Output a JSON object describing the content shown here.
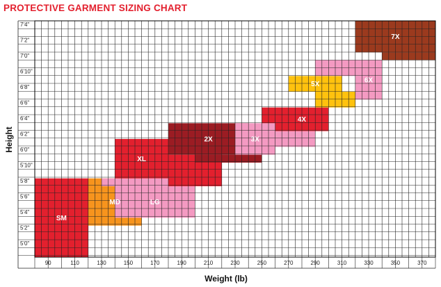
{
  "chart_data": {
    "type": "heatmap",
    "title": "PROTECTIVE GARMENT SIZING CHART",
    "xlabel": "Weight (lb)",
    "ylabel": "Height",
    "x_ticks": [
      "90",
      "110",
      "130",
      "150",
      "170",
      "190",
      "210",
      "230",
      "250",
      "270",
      "290",
      "310",
      "330",
      "350",
      "370"
    ],
    "y_ticks": [
      "7'4\"",
      "7'2\"",
      "7'0\"",
      "6'10\"",
      "6'8\"",
      "6'6\"",
      "6'4\"",
      "6'2\"",
      "6'0\"",
      "5'10\"",
      "5'8\"",
      "5'6\"",
      "5'4\"",
      "5'2\"",
      "5'0\""
    ],
    "x_range_lb": [
      80,
      380
    ],
    "y_range_in": [
      59,
      89
    ],
    "grid": true,
    "sizes": [
      {
        "label": "SM",
        "color": "#e3202e",
        "label_color": "#ffffff",
        "regions": [
          {
            "weight": [
              80,
              120
            ],
            "height": [
              59,
              69
            ]
          }
        ]
      },
      {
        "label": "MD",
        "color": "#f7941d",
        "label_color": "#ffffff",
        "regions": [
          {
            "weight": [
              120,
              160
            ],
            "height": [
              63,
              69
            ]
          }
        ]
      },
      {
        "label": "LG",
        "color": "#f49ac2",
        "label_color": "#ffffff",
        "regions": [
          {
            "weight": [
              130,
              180
            ],
            "height": [
              68,
              69
            ]
          },
          {
            "weight": [
              140,
              200
            ],
            "height": [
              64,
              68
            ]
          }
        ]
      },
      {
        "label": "XL",
        "color": "#e3202e",
        "label_color": "#ffffff",
        "regions": [
          {
            "weight": [
              140,
              180
            ],
            "height": [
              69,
              74
            ]
          },
          {
            "weight": [
              180,
              220
            ],
            "height": [
              68,
              72
            ]
          }
        ]
      },
      {
        "label": "2X",
        "color": "#9b1c23",
        "label_color": "#ffffff",
        "regions": [
          {
            "weight": [
              180,
              240
            ],
            "height": [
              72,
              76
            ]
          },
          {
            "weight": [
              200,
              250
            ],
            "height": [
              71,
              72
            ]
          }
        ]
      },
      {
        "label": "3X",
        "color": "#f49ac2",
        "label_color": "#ffffff",
        "regions": [
          {
            "weight": [
              230,
              260
            ],
            "height": [
              72,
              76
            ]
          },
          {
            "weight": [
              260,
              290
            ],
            "height": [
              73,
              75
            ]
          }
        ]
      },
      {
        "label": "4X",
        "color": "#e3202e",
        "label_color": "#ffffff",
        "regions": [
          {
            "weight": [
              250,
              260
            ],
            "height": [
              76,
              78
            ]
          },
          {
            "weight": [
              260,
              300
            ],
            "height": [
              75,
              78
            ]
          }
        ]
      },
      {
        "label": "5X",
        "color": "#ffc20e",
        "label_color": "#ffffff",
        "regions": [
          {
            "weight": [
              270,
              310
            ],
            "height": [
              80,
              82
            ]
          },
          {
            "weight": [
              290,
              320
            ],
            "height": [
              78,
              80
            ]
          }
        ]
      },
      {
        "label": "6X",
        "color": "#f49ac2",
        "label_color": "#ffffff",
        "regions": [
          {
            "weight": [
              290,
              320
            ],
            "height": [
              82,
              84
            ]
          },
          {
            "weight": [
              320,
              340
            ],
            "height": [
              79,
              84
            ]
          }
        ]
      },
      {
        "label": "7X",
        "color": "#9b3a1e",
        "label_color": "#ffffff",
        "regions": [
          {
            "weight": [
              320,
              380
            ],
            "height": [
              85,
              89
            ]
          },
          {
            "weight": [
              340,
              380
            ],
            "height": [
              84,
              85
            ]
          }
        ]
      }
    ]
  },
  "colors": {
    "title": "#e3202e",
    "grid": "#222222",
    "border": "#000000"
  }
}
